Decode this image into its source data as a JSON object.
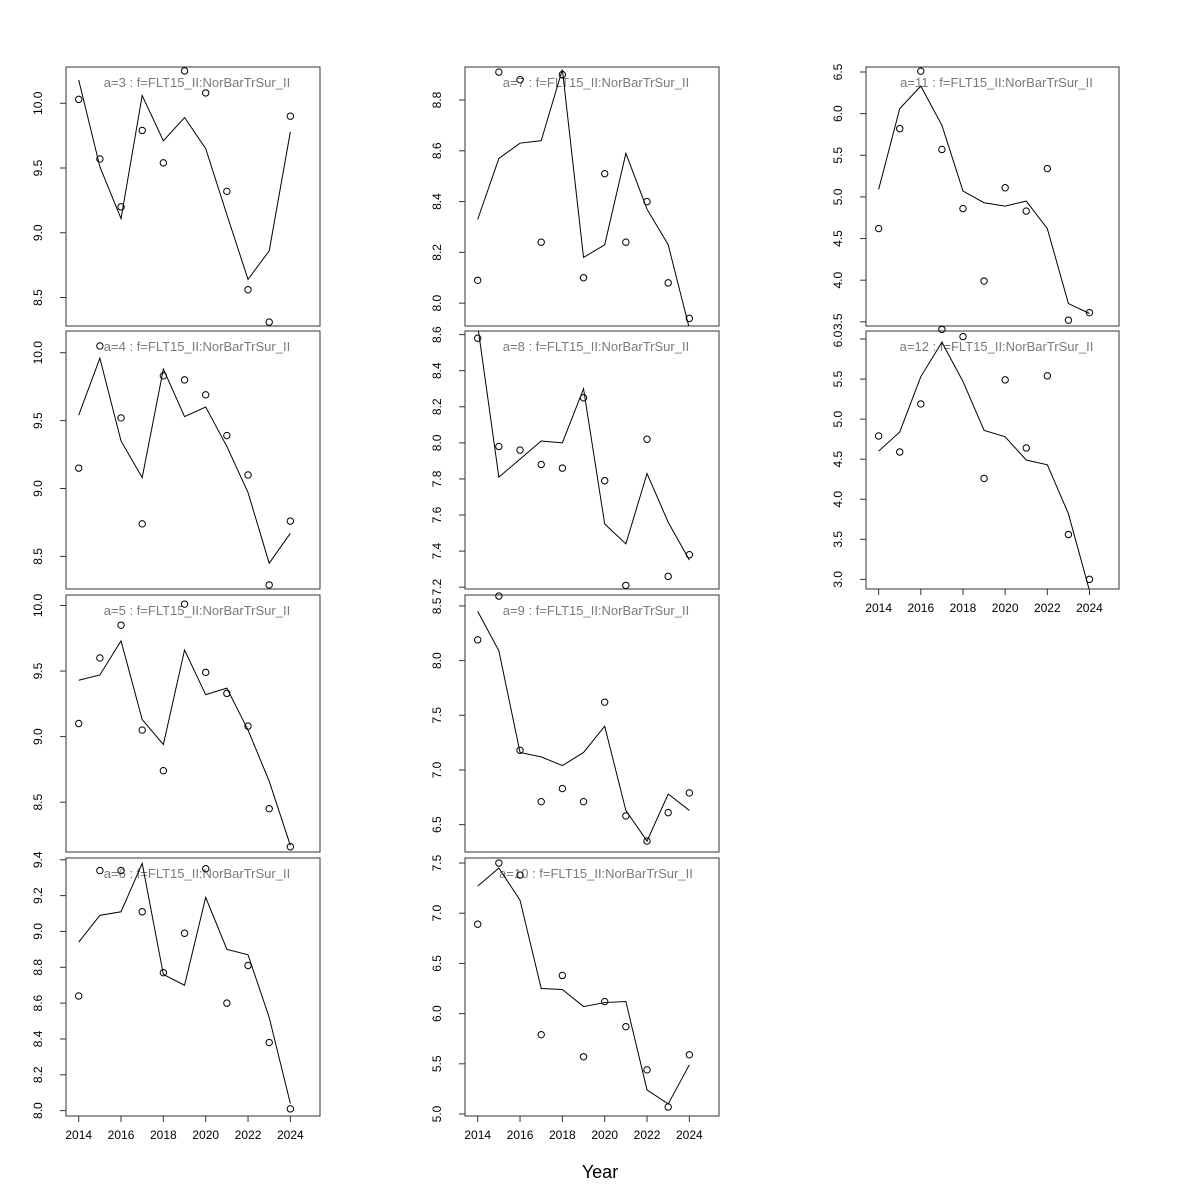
{
  "chart_data": {
    "type": "scatter",
    "layout": "multi-panel",
    "xlabel": "Year",
    "panels": [
      {
        "title": "a=3  :  f=FLT15_II:NorBarTrSur_II",
        "x": [
          2014,
          2015,
          2016,
          2017,
          2018,
          2019,
          2020,
          2021,
          2022,
          2023,
          2024
        ],
        "points": [
          10.03,
          9.57,
          9.2,
          9.79,
          9.54,
          10.25,
          10.08,
          9.32,
          8.56,
          8.31,
          9.9
        ],
        "line": [
          10.18,
          9.51,
          9.11,
          10.06,
          9.71,
          9.89,
          9.65,
          9.14,
          8.64,
          8.86,
          9.78
        ],
        "ylim": [
          8.28,
          10.28
        ],
        "yticks": [
          8.5,
          9.0,
          9.5,
          10.0
        ],
        "yticklabels": [
          "8.5",
          "9.0",
          "9.5",
          "10.0"
        ]
      },
      {
        "title": "a=4  :  f=FLT15_II:NorBarTrSur_II",
        "x": [
          2014,
          2015,
          2016,
          2017,
          2018,
          2019,
          2020,
          2021,
          2022,
          2023,
          2024
        ],
        "points": [
          9.15,
          10.05,
          9.52,
          8.74,
          9.83,
          9.8,
          9.69,
          9.39,
          9.1,
          8.29,
          8.76
        ],
        "line": [
          9.54,
          9.96,
          9.35,
          9.08,
          9.88,
          9.53,
          9.6,
          9.31,
          8.97,
          8.45,
          8.67
        ],
        "ylim": [
          8.26,
          10.16
        ],
        "yticks": [
          8.5,
          9.0,
          9.5,
          10.0
        ],
        "yticklabels": [
          "8.5",
          "9.0",
          "9.5",
          "10.0"
        ]
      },
      {
        "title": "a=5  :  f=FLT15_II:NorBarTrSur_II",
        "x": [
          2014,
          2015,
          2016,
          2017,
          2018,
          2019,
          2020,
          2021,
          2022,
          2023,
          2024
        ],
        "points": [
          9.1,
          9.6,
          9.85,
          9.05,
          8.74,
          10.01,
          9.49,
          9.33,
          9.08,
          8.45,
          8.16
        ],
        "line": [
          9.43,
          9.47,
          9.73,
          9.13,
          8.94,
          9.66,
          9.32,
          9.37,
          9.05,
          8.66,
          8.17
        ],
        "ylim": [
          8.12,
          10.08
        ],
        "yticks": [
          8.5,
          9.0,
          9.5,
          10.0
        ],
        "yticklabels": [
          "8.5",
          "9.0",
          "9.5",
          "10.0"
        ]
      },
      {
        "title": "a=6  :  f=FLT15_II:NorBarTrSur_II",
        "x": [
          2014,
          2015,
          2016,
          2017,
          2018,
          2019,
          2020,
          2021,
          2022,
          2023,
          2024
        ],
        "points": [
          8.64,
          9.34,
          9.34,
          9.11,
          8.77,
          8.99,
          9.35,
          8.6,
          8.81,
          8.38,
          8.01
        ],
        "line": [
          8.94,
          9.09,
          9.11,
          9.38,
          8.76,
          8.7,
          9.19,
          8.9,
          8.87,
          8.52,
          8.04
        ],
        "ylim": [
          7.97,
          9.41
        ],
        "yticks": [
          8.0,
          8.2,
          8.4,
          8.6,
          8.8,
          9.0,
          9.2,
          9.4
        ],
        "yticklabels": [
          "8.0",
          "8.2",
          "8.4",
          "8.6",
          "8.8",
          "9.0",
          "9.2",
          "9.4"
        ]
      },
      {
        "title": "a=7  :  f=FLT15_II:NorBarTrSur_II",
        "x": [
          2014,
          2015,
          2016,
          2017,
          2018,
          2019,
          2020,
          2021,
          2022,
          2023,
          2024
        ],
        "points": [
          8.09,
          8.91,
          8.88,
          8.24,
          8.9,
          8.1,
          8.51,
          8.24,
          8.4,
          8.08,
          7.94
        ],
        "line": [
          8.33,
          8.57,
          8.63,
          8.64,
          8.92,
          8.18,
          8.23,
          8.59,
          8.37,
          8.23,
          7.9
        ],
        "ylim": [
          7.91,
          8.93
        ],
        "yticks": [
          8.0,
          8.2,
          8.4,
          8.6,
          8.8
        ],
        "yticklabels": [
          "8.0",
          "8.2",
          "8.4",
          "8.6",
          "8.8"
        ]
      },
      {
        "title": "a=8  :  f=FLT15_II:NorBarTrSur_II",
        "x": [
          2014,
          2015,
          2016,
          2017,
          2018,
          2019,
          2020,
          2021,
          2022,
          2023,
          2024
        ],
        "points": [
          8.58,
          7.98,
          7.96,
          7.88,
          7.86,
          8.25,
          7.79,
          7.21,
          8.02,
          7.26,
          7.38
        ],
        "line": [
          8.65,
          7.81,
          7.91,
          8.01,
          8.0,
          8.3,
          7.55,
          7.44,
          7.83,
          7.56,
          7.35
        ],
        "ylim": [
          7.19,
          8.62
        ],
        "yticks": [
          7.2,
          7.4,
          7.6,
          7.8,
          8.0,
          8.2,
          8.4,
          8.6
        ],
        "yticklabels": [
          "7.2",
          "7.4",
          "7.6",
          "7.8",
          "8.0",
          "8.2",
          "8.4",
          "8.6"
        ]
      },
      {
        "title": "a=9  :  f=FLT15_II:NorBarTrSur_II",
        "x": [
          2014,
          2015,
          2016,
          2017,
          2018,
          2019,
          2020,
          2021,
          2022,
          2023,
          2024
        ],
        "points": [
          8.19,
          8.59,
          7.18,
          6.71,
          6.83,
          6.71,
          7.62,
          6.58,
          6.35,
          6.61,
          6.79
        ],
        "line": [
          8.45,
          8.09,
          7.16,
          7.12,
          7.04,
          7.16,
          7.4,
          6.63,
          6.35,
          6.78,
          6.63
        ],
        "ylim": [
          6.25,
          8.6
        ],
        "yticks": [
          6.5,
          7.0,
          7.5,
          8.0,
          8.5
        ],
        "yticklabels": [
          "6.5",
          "7.0",
          "7.5",
          "8.0",
          "8.5"
        ]
      },
      {
        "title": "a=10  :  f=FLT15_II:NorBarTrSur_II",
        "x": [
          2014,
          2015,
          2016,
          2017,
          2018,
          2019,
          2020,
          2021,
          2022,
          2023,
          2024
        ],
        "points": [
          6.89,
          7.5,
          7.38,
          5.79,
          6.38,
          5.57,
          6.12,
          5.87,
          5.44,
          5.07,
          5.59
        ],
        "line": [
          7.27,
          7.45,
          7.13,
          6.25,
          6.24,
          6.07,
          6.11,
          6.12,
          5.24,
          5.1,
          5.49
        ],
        "ylim": [
          4.98,
          7.55
        ],
        "yticks": [
          5.0,
          5.5,
          6.0,
          6.5,
          7.0,
          7.5
        ],
        "yticklabels": [
          "5.0",
          "5.5",
          "6.0",
          "6.5",
          "7.0",
          "7.5"
        ]
      },
      {
        "title": "a=11  :  f=FLT15_II:NorBarTrSur_II",
        "x": [
          2014,
          2015,
          2016,
          2017,
          2018,
          2019,
          2020,
          2021,
          2022,
          2023,
          2024
        ],
        "points": [
          4.62,
          5.82,
          6.51,
          5.57,
          4.86,
          3.99,
          5.11,
          4.83,
          5.34,
          3.52,
          3.61
        ],
        "line": [
          5.09,
          6.06,
          6.33,
          5.86,
          5.07,
          4.93,
          4.89,
          4.95,
          4.62,
          3.72,
          3.6
        ],
        "ylim": [
          3.45,
          6.56
        ],
        "yticks": [
          3.5,
          4.0,
          4.5,
          5.0,
          5.5,
          6.0,
          6.5
        ],
        "yticklabels": [
          "3.5",
          "4.0",
          "4.5",
          "5.0",
          "5.5",
          "6.0",
          "6.5"
        ]
      },
      {
        "title": "a=12  :  f=FLT15_II:NorBarTrSur_II",
        "x": [
          2014,
          2015,
          2016,
          2017,
          2018,
          2019,
          2020,
          2021,
          2022,
          2023,
          2024
        ],
        "points": [
          4.79,
          4.59,
          5.19,
          6.12,
          6.03,
          4.26,
          5.49,
          4.64,
          5.54,
          3.56,
          3.0
        ],
        "line": [
          4.6,
          4.84,
          5.53,
          5.96,
          5.47,
          4.86,
          4.78,
          4.49,
          4.43,
          3.82,
          2.86
        ],
        "ylim": [
          2.88,
          6.1
        ],
        "yticks": [
          3.0,
          3.5,
          4.0,
          4.5,
          5.0,
          5.5,
          6.0
        ],
        "yticklabels": [
          "3.0",
          "3.5",
          "4.0",
          "4.5",
          "5.0",
          "5.5",
          "6.0"
        ]
      }
    ],
    "xticks": [
      2014,
      2016,
      2018,
      2020,
      2022,
      2024
    ],
    "xticklabels": [
      "2014",
      "2016",
      "2018",
      "2020",
      "2022",
      "2024"
    ],
    "xlim": [
      2013.4,
      2025.4
    ],
    "grid": false,
    "legend": "none"
  }
}
